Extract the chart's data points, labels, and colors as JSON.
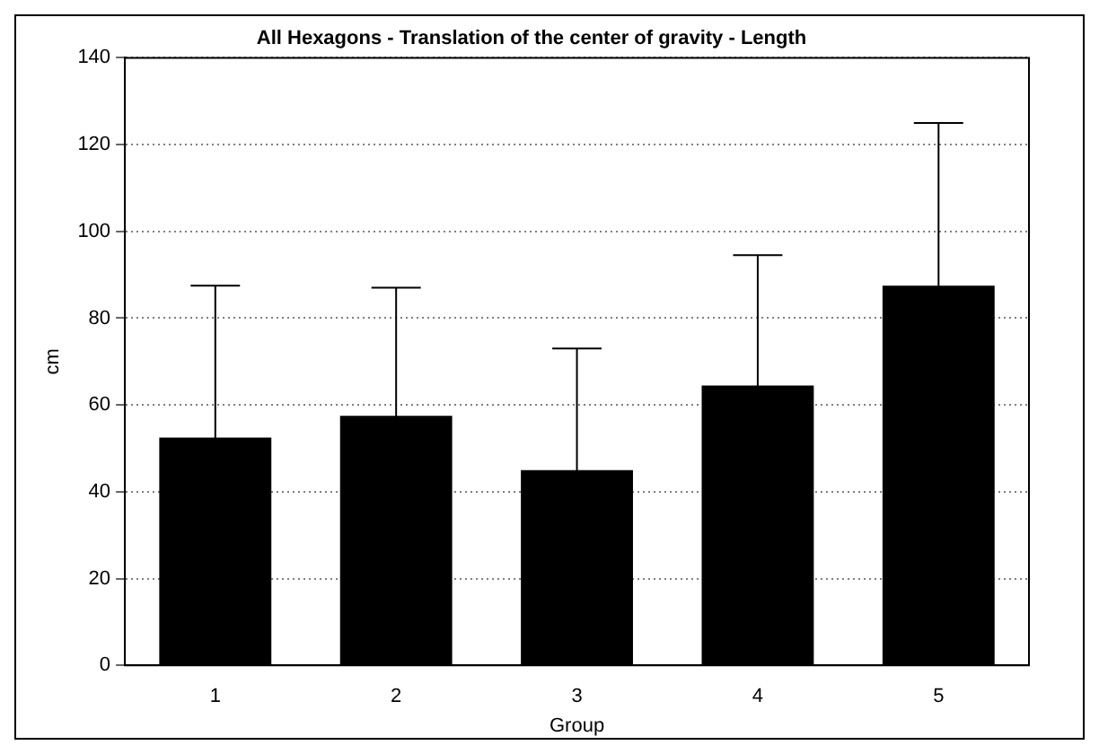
{
  "chart_data": {
    "type": "bar",
    "title": "All Hexagons - Translation of the center of gravity - Length",
    "xlabel": "Group",
    "ylabel": "cm",
    "categories": [
      "1",
      "2",
      "3",
      "4",
      "5"
    ],
    "values": [
      52.5,
      57.5,
      45,
      64.5,
      87.5
    ],
    "errors": [
      35,
      29.5,
      28,
      30,
      37.5
    ],
    "color": "#000000",
    "ylim": [
      0,
      140
    ],
    "yticks": [
      0,
      20,
      40,
      60,
      80,
      100,
      120,
      140
    ],
    "grid": "y",
    "legend": false
  }
}
